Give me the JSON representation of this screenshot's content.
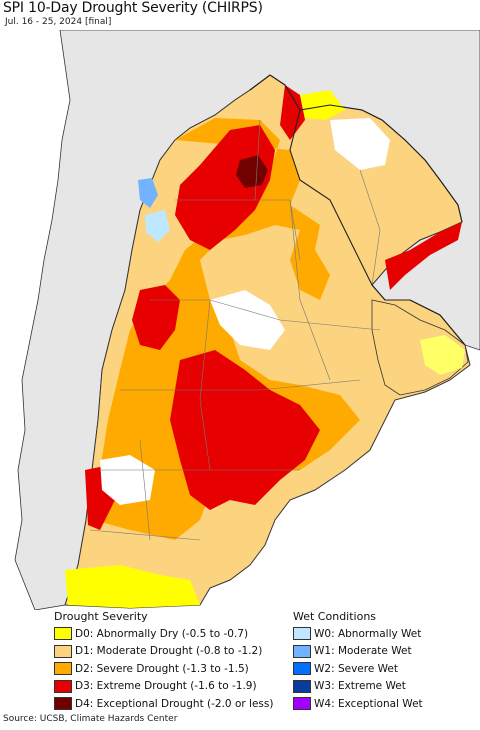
{
  "title": "SPI 10-Day Drought Severity (CHIRPS)",
  "subtitle": "Jul. 16 - 25, 2024 [final]",
  "colors": {
    "ocean": "#ffffff",
    "no_data_land": "#e6e6e6",
    "border": "#333333",
    "province_line": "#777777"
  },
  "legend": {
    "drought": {
      "heading": "Drought Severity",
      "items": [
        {
          "label": "D0: Abnormally Dry (-0.5 to -0.7)",
          "color": "#ffff00"
        },
        {
          "label": "D1: Moderate Drought (-0.8 to -1.2)",
          "color": "#fcd37f"
        },
        {
          "label": "D2: Severe Drought (-1.3 to -1.5)",
          "color": "#ffaa00"
        },
        {
          "label": "D3: Extreme Drought (-1.6 to -1.9)",
          "color": "#e60000"
        },
        {
          "label": "D4: Exceptional Drought (-2.0 or less)",
          "color": "#730000"
        }
      ]
    },
    "wet": {
      "heading": "Wet Conditions",
      "items": [
        {
          "label": "W0: Abnormally Wet",
          "color": "#bee8ff"
        },
        {
          "label": "W1: Moderate Wet",
          "color": "#73b2ff"
        },
        {
          "label": "W2: Severe Wet",
          "color": "#0070ff"
        },
        {
          "label": "W3: Extreme Wet",
          "color": "#0a3ca0"
        },
        {
          "label": "W4: Exceptional Wet",
          "color": "#a300ff"
        }
      ]
    }
  },
  "source": "Source: UCSB, Climate Hazards Center"
}
